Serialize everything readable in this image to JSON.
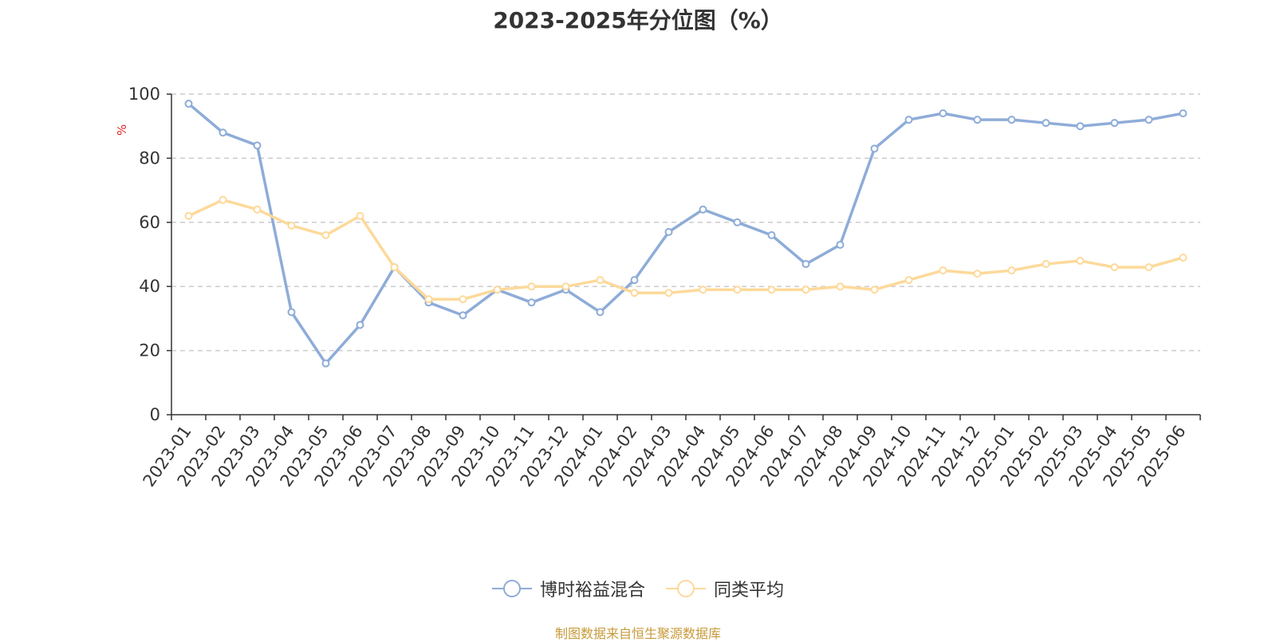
{
  "chart_data": {
    "type": "line",
    "title": "2023-2025年分位图（%）",
    "ylabel": "%",
    "xlabel": "",
    "ylim": [
      0,
      100
    ],
    "yticks": [
      0,
      20,
      40,
      60,
      80,
      100
    ],
    "grid": true,
    "legend_position": "bottom",
    "categories": [
      "2023-01",
      "2023-02",
      "2023-03",
      "2023-04",
      "2023-05",
      "2023-06",
      "2023-07",
      "2023-08",
      "2023-09",
      "2023-10",
      "2023-11",
      "2023-12",
      "2024-01",
      "2024-02",
      "2024-03",
      "2024-04",
      "2024-05",
      "2024-06",
      "2024-07",
      "2024-08",
      "2024-09",
      "2024-10",
      "2024-11",
      "2024-12",
      "2025-01",
      "2025-02",
      "2025-03",
      "2025-04",
      "2025-05",
      "2025-06"
    ],
    "series": [
      {
        "name": "博时裕益混合",
        "color": "#8eacd8",
        "values": [
          97,
          88,
          84,
          32,
          16,
          28,
          46,
          35,
          31,
          39,
          35,
          39,
          32,
          42,
          57,
          64,
          60,
          56,
          47,
          53,
          83,
          92,
          94,
          92,
          92,
          91,
          90,
          91,
          92,
          94
        ]
      },
      {
        "name": "同类平均",
        "color": "#fdd99a",
        "values": [
          62,
          67,
          64,
          59,
          56,
          62,
          46,
          36,
          36,
          39,
          40,
          40,
          42,
          38,
          38,
          39,
          39,
          39,
          39,
          40,
          39,
          42,
          45,
          44,
          45,
          47,
          48,
          46,
          46,
          49
        ]
      }
    ],
    "source": "制图数据来自恒生聚源数据库"
  }
}
